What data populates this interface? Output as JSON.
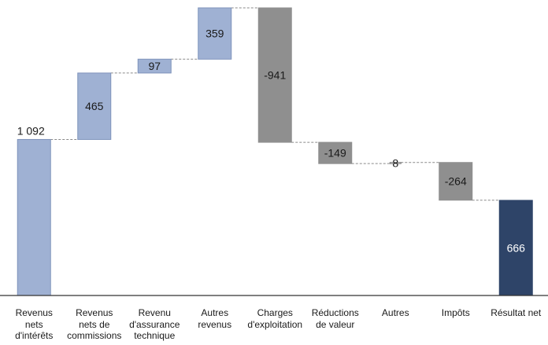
{
  "chart_data": {
    "type": "waterfall",
    "title": "",
    "xlabel": "",
    "ylabel": "",
    "categories": [
      "Revenus\nnets\nd'intérêts",
      "Revenus\nnets de\ncommissions",
      "Revenu\nd'assurance\ntechnique",
      "Autres\nrevenus",
      "Charges\nd'exploitation",
      "Réductions\nde valeur",
      "Autres",
      "Impôts",
      "Résultat net"
    ],
    "values": [
      1092,
      465,
      97,
      359,
      -941,
      -149,
      8,
      -264,
      666
    ],
    "value_labels": [
      "1 092",
      "465",
      "97",
      "359",
      "-941",
      "-149",
      "8",
      "-264",
      "666"
    ],
    "kinds": [
      "total",
      "increase",
      "increase",
      "increase",
      "decrease",
      "decrease",
      "increase",
      "decrease",
      "total"
    ],
    "ylim": [
      0,
      2013
    ],
    "grid": false,
    "legend": "none",
    "colors": {
      "increase": "#9fb1d3",
      "increase_stroke": "#7f93bb",
      "decrease": "#8f8f8f",
      "final_total": "#2e4468",
      "connector": "#8a8a8a",
      "axis": "#333333"
    }
  }
}
